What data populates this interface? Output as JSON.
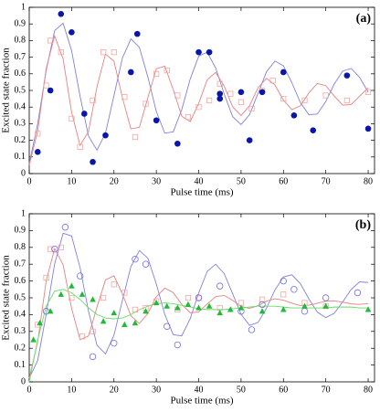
{
  "chart_data": [
    {
      "type": "line",
      "annotation": "(a)",
      "xlabel": "Pulse time (ms)",
      "ylabel": "Excited state fraction",
      "xlim": [
        0,
        81.5
      ],
      "ylim": [
        0,
        1
      ],
      "xticks": [
        0,
        10,
        20,
        30,
        40,
        50,
        60,
        70,
        80
      ],
      "yticks": [
        0,
        0.1,
        0.2,
        0.3,
        0.4,
        0.5,
        0.6,
        0.7,
        0.8,
        0.9,
        1
      ],
      "series": [
        {
          "color": "#8080e0",
          "marker": "none",
          "x": [
            0,
            2,
            4,
            6,
            8,
            10,
            12,
            14,
            16,
            18,
            20,
            22,
            24,
            26,
            28,
            30,
            32,
            34,
            36,
            38,
            40,
            42,
            44,
            46,
            48,
            50,
            52,
            54,
            56,
            58,
            60,
            62,
            64,
            66,
            68,
            70,
            72,
            74,
            76,
            78,
            80
          ],
          "values": [
            0.06,
            0.3,
            0.62,
            0.86,
            0.904,
            0.74,
            0.465,
            0.225,
            0.141,
            0.243,
            0.469,
            0.696,
            0.81,
            0.759,
            0.581,
            0.373,
            0.243,
            0.251,
            0.385,
            0.569,
            0.706,
            0.73,
            0.636,
            0.48,
            0.343,
            0.295,
            0.354,
            0.482,
            0.612,
            0.677,
            0.648,
            0.546,
            0.427,
            0.354,
            0.358,
            0.434,
            0.539,
            0.617,
            0.632,
            0.578,
            0.489
          ]
        },
        {
          "color": "#e88080",
          "marker": "none",
          "x": [
            0,
            2,
            4,
            6,
            8,
            10,
            12,
            14,
            16,
            18,
            20,
            22,
            24,
            26,
            28,
            30,
            32,
            34,
            36,
            38,
            40,
            42,
            44,
            46,
            48,
            50,
            52,
            54,
            56,
            58,
            60,
            62,
            64,
            66,
            68,
            70,
            72,
            74,
            76,
            78,
            80
          ],
          "values": [
            0.05,
            0.256,
            0.632,
            0.828,
            0.689,
            0.369,
            0.169,
            0.254,
            0.523,
            0.719,
            0.676,
            0.455,
            0.269,
            0.278,
            0.457,
            0.63,
            0.646,
            0.504,
            0.345,
            0.312,
            0.422,
            0.564,
            0.609,
            0.527,
            0.402,
            0.349,
            0.408,
            0.516,
            0.573,
            0.533,
            0.441,
            0.384,
            0.408,
            0.485,
            0.542,
            0.529,
            0.466,
            0.412,
            0.415,
            0.466,
            0.516
          ]
        },
        {
          "color": "#f2a8a0",
          "marker": "square-open",
          "x": [
            2,
            4,
            5,
            7.5,
            10,
            12,
            15,
            17.5,
            20,
            22.5,
            25,
            27.5,
            30,
            32.5,
            35,
            37.5,
            40,
            42.5,
            45,
            47.5,
            50,
            52.5,
            55,
            57.5,
            60,
            65,
            70,
            75,
            80
          ],
          "values": [
            0.24,
            0.53,
            0.8,
            0.73,
            0.33,
            0.16,
            0.44,
            0.73,
            0.73,
            0.46,
            0.22,
            0.42,
            0.6,
            0.62,
            0.47,
            0.34,
            0.4,
            0.44,
            0.54,
            0.48,
            0.43,
            0.39,
            0.5,
            0.56,
            0.45,
            0.44,
            0.47,
            0.44,
            0.49
          ]
        },
        {
          "color": "#0a16a8",
          "marker": "circle-filled",
          "x": [
            2,
            5,
            7.5,
            10,
            13,
            15,
            18,
            24,
            25.5,
            30,
            35,
            40,
            42.5,
            45,
            45,
            50,
            52,
            55,
            60,
            62.5,
            67,
            75,
            80
          ],
          "values": [
            0.13,
            0.5,
            0.96,
            0.85,
            0.36,
            0.07,
            0.23,
            0.61,
            0.84,
            0.32,
            0.18,
            0.73,
            0.73,
            0.48,
            0.45,
            0.49,
            0.2,
            0.49,
            0.61,
            0.35,
            0.26,
            0.59,
            0.27
          ]
        }
      ]
    },
    {
      "type": "line",
      "annotation": "(b)",
      "xlabel": "Pulse time (ms)",
      "ylabel": "Excited state fraction",
      "xlim": [
        0,
        81.5
      ],
      "ylim": [
        0,
        1
      ],
      "xticks": [
        0,
        10,
        20,
        30,
        40,
        50,
        60,
        70,
        80
      ],
      "yticks": [
        0,
        0.1,
        0.2,
        0.3,
        0.4,
        0.5,
        0.6,
        0.7,
        0.8,
        0.9,
        1
      ],
      "series": [
        {
          "color": "#8080e0",
          "marker": "none",
          "x": [
            0,
            2,
            4,
            6,
            8,
            10,
            12,
            14,
            16,
            18,
            20,
            22,
            24,
            26,
            28,
            30,
            32,
            34,
            36,
            38,
            40,
            42,
            44,
            46,
            48,
            50,
            52,
            54,
            56,
            58,
            60,
            62,
            64,
            66,
            68,
            70,
            72,
            74,
            76,
            78,
            80
          ],
          "values": [
            0.022,
            0.127,
            0.401,
            0.702,
            0.884,
            0.868,
            0.679,
            0.419,
            0.218,
            0.166,
            0.278,
            0.486,
            0.686,
            0.781,
            0.736,
            0.582,
            0.4,
            0.28,
            0.274,
            0.376,
            0.529,
            0.657,
            0.7,
            0.645,
            0.525,
            0.402,
            0.336,
            0.353,
            0.438,
            0.547,
            0.624,
            0.637,
            0.584,
            0.494,
            0.415,
            0.382,
            0.408,
            0.476,
            0.55,
            0.595,
            0.591
          ]
        },
        {
          "color": "#e88080",
          "marker": "none",
          "x": [
            0,
            2,
            4,
            6,
            8,
            10,
            12,
            14,
            16,
            18,
            20,
            22,
            24,
            26,
            28,
            30,
            32,
            34,
            36,
            38,
            40,
            42,
            44,
            46,
            48,
            50,
            52,
            54,
            56,
            58,
            60,
            62,
            64,
            66,
            68,
            70,
            72,
            74,
            76,
            78,
            80
          ],
          "values": [
            0.02,
            0.239,
            0.601,
            0.793,
            0.696,
            0.437,
            0.251,
            0.273,
            0.446,
            0.607,
            0.631,
            0.523,
            0.393,
            0.347,
            0.407,
            0.506,
            0.558,
            0.531,
            0.461,
            0.411,
            0.416,
            0.463,
            0.507,
            0.514,
            0.485,
            0.449,
            0.437,
            0.453,
            0.48,
            0.494,
            0.486,
            0.468,
            0.454,
            0.456,
            0.468,
            0.48,
            0.482,
            0.474,
            0.464,
            0.461,
            0.465
          ]
        },
        {
          "color": "#66dd66",
          "marker": "none",
          "x": [
            0,
            2,
            4,
            6,
            8,
            10,
            12,
            14,
            16,
            18,
            20,
            22,
            24,
            26,
            28,
            30,
            32,
            34,
            36,
            38,
            40,
            42,
            44,
            46,
            48,
            50,
            52,
            54,
            56,
            58,
            60,
            62,
            64,
            66,
            68,
            70,
            72,
            74,
            76,
            78,
            80
          ],
          "values": [
            0,
            0.25,
            0.45,
            0.54,
            0.55,
            0.53,
            0.49,
            0.44,
            0.4,
            0.38,
            0.375,
            0.38,
            0.4,
            0.43,
            0.45,
            0.465,
            0.47,
            0.465,
            0.455,
            0.445,
            0.435,
            0.43,
            0.43,
            0.43,
            0.435,
            0.44,
            0.445,
            0.45,
            0.45,
            0.45,
            0.445,
            0.44,
            0.44,
            0.44,
            0.44,
            0.44,
            0.445,
            0.445,
            0.445,
            0.44,
            0.44
          ]
        },
        {
          "color": "#f2a8a0",
          "marker": "square-open",
          "x": [
            2,
            4,
            5,
            7.5,
            10,
            12.5,
            15,
            17.5,
            20,
            22.5,
            25,
            27.5,
            30,
            35,
            37.5,
            40,
            45,
            50,
            55,
            60,
            65,
            70
          ],
          "values": [
            0.34,
            0.62,
            0.79,
            0.8,
            0.5,
            0.27,
            0.3,
            0.5,
            0.58,
            0.53,
            0.43,
            0.44,
            0.48,
            0.43,
            0.5,
            0.5,
            0.44,
            0.47,
            0.49,
            0.52,
            0.47,
            0.45
          ]
        },
        {
          "color": "#7070e0",
          "marker": "circle-open",
          "x": [
            4,
            6,
            8.5,
            12,
            15,
            20,
            25,
            27.5,
            32.5,
            35,
            40,
            45,
            50,
            52.5,
            55,
            60,
            62.5,
            65,
            70,
            77.5
          ],
          "values": [
            0.42,
            0.79,
            0.92,
            0.63,
            0.15,
            0.23,
            0.73,
            0.7,
            0.33,
            0.22,
            0.5,
            0.57,
            0.42,
            0.31,
            0.46,
            0.6,
            0.55,
            0.42,
            0.5,
            0.53
          ]
        },
        {
          "color": "#22b83a",
          "marker": "triangle-filled",
          "x": [
            1,
            2.5,
            5,
            7.5,
            10,
            12.5,
            15,
            17.5,
            20,
            22.5,
            25,
            27.5,
            30,
            32.5,
            35,
            37.5,
            40,
            42.5,
            45,
            47.5,
            50,
            55,
            60,
            65,
            70,
            80
          ],
          "values": [
            0.25,
            0.35,
            0.42,
            0.52,
            0.57,
            0.52,
            0.49,
            0.36,
            0.41,
            0.34,
            0.35,
            0.42,
            0.47,
            0.45,
            0.44,
            0.46,
            0.44,
            0.45,
            0.41,
            0.43,
            0.44,
            0.42,
            0.43,
            0.45,
            0.45,
            0.43
          ]
        }
      ]
    }
  ]
}
